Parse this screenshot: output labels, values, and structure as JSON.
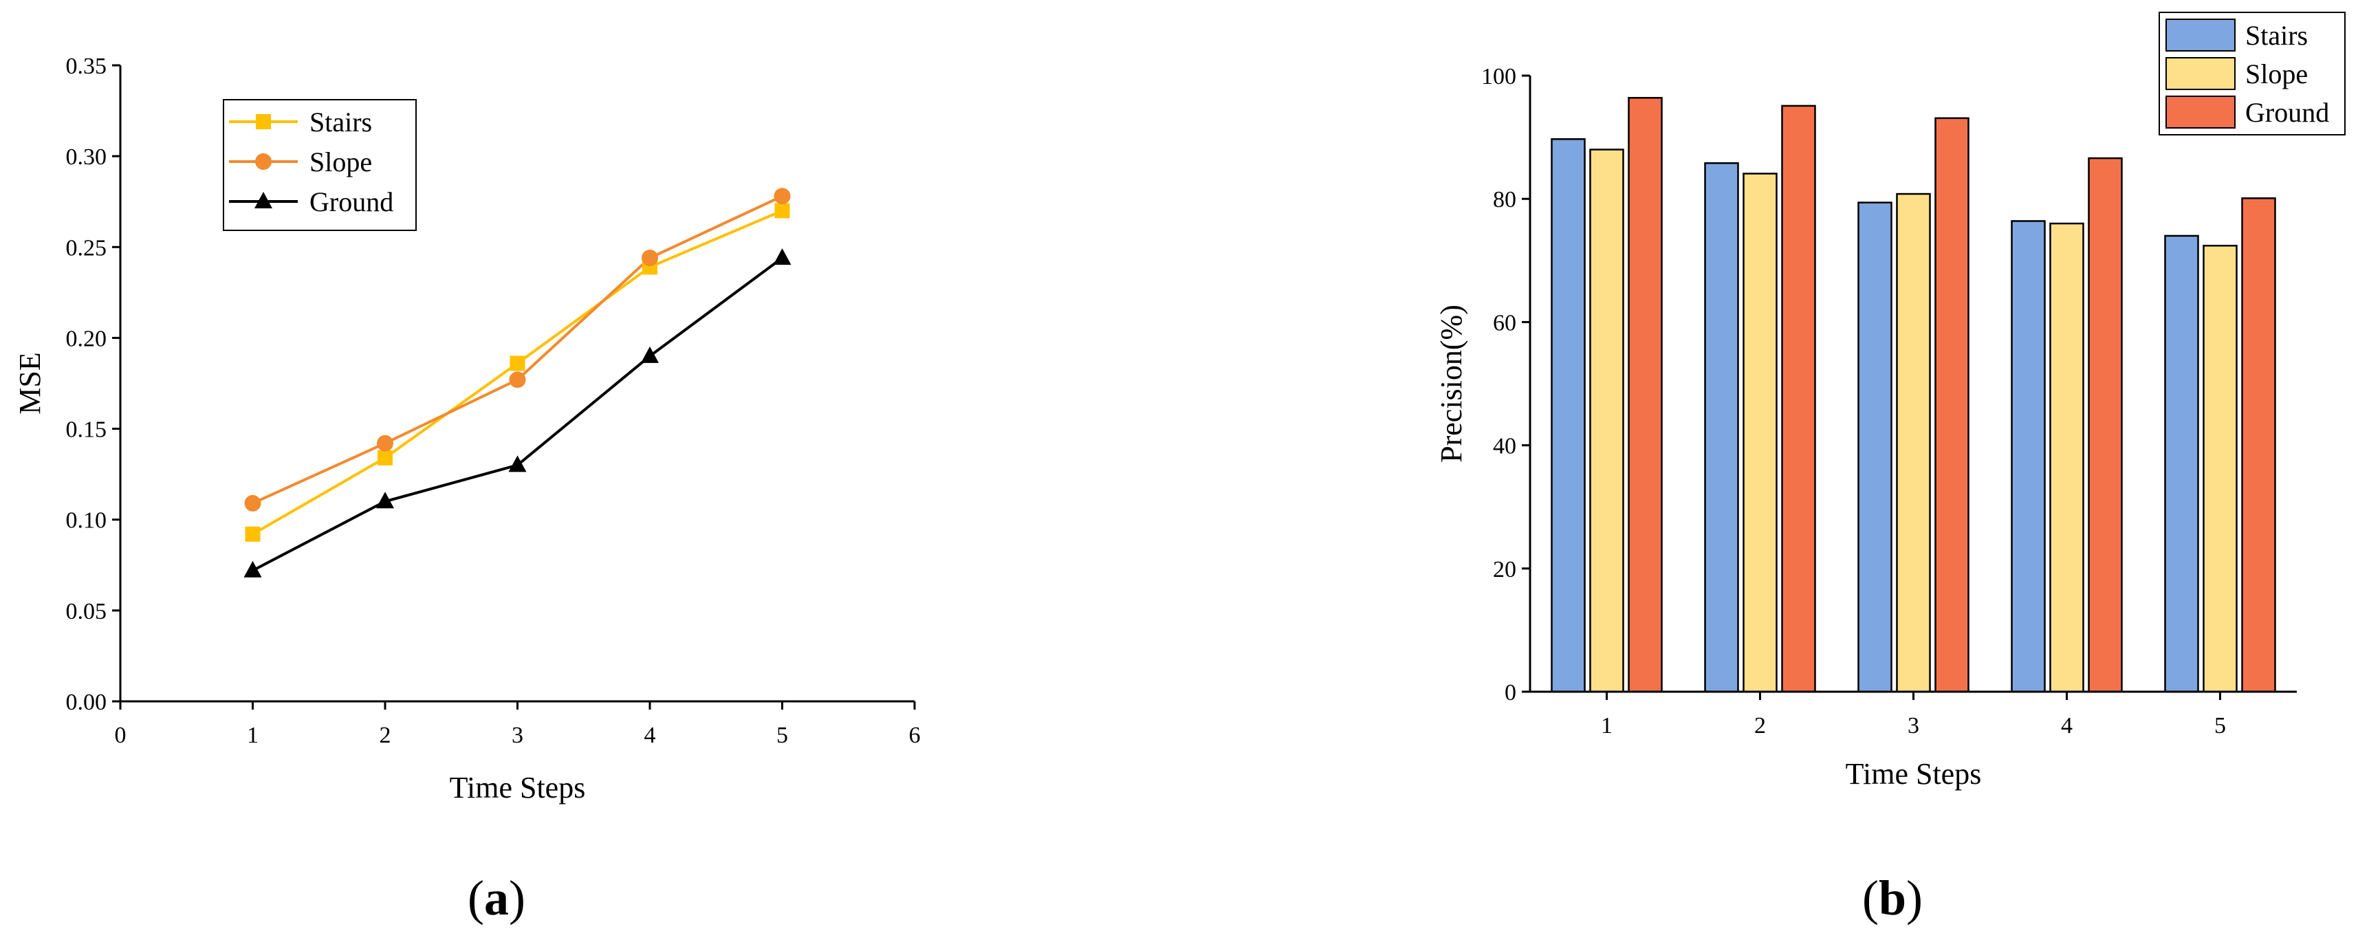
{
  "panels": [
    {
      "label_open": "(",
      "label_letter": "a",
      "label_close": ")"
    },
    {
      "label_open": "(",
      "label_letter": "b",
      "label_close": ")"
    }
  ],
  "chart_data": [
    {
      "type": "line",
      "xlabel": "Time Steps",
      "ylabel": "MSE",
      "xlim": [
        0,
        6
      ],
      "ylim": [
        0,
        0.35
      ],
      "x_ticks": [
        "0",
        "1",
        "2",
        "3",
        "4",
        "5",
        "6"
      ],
      "y_ticks": [
        "0.00",
        "0.05",
        "0.10",
        "0.15",
        "0.20",
        "0.25",
        "0.30",
        "0.35"
      ],
      "x": [
        1,
        2,
        3,
        4,
        5
      ],
      "legend_position": "top-left",
      "grid": false,
      "series": [
        {
          "name": "Stairs",
          "values": [
            0.092,
            0.134,
            0.186,
            0.239,
            0.27
          ],
          "color": "#FFC000",
          "marker": "square"
        },
        {
          "name": "Slope",
          "values": [
            0.109,
            0.142,
            0.177,
            0.244,
            0.278
          ],
          "color": "#F28A2E",
          "marker": "circle"
        },
        {
          "name": "Ground",
          "values": [
            0.072,
            0.11,
            0.13,
            0.19,
            0.244
          ],
          "color": "#000000",
          "marker": "triangle"
        }
      ]
    },
    {
      "type": "bar",
      "xlabel": "Time Steps",
      "ylabel": "Precision(%)",
      "ylim": [
        0,
        100
      ],
      "categories": [
        "1",
        "2",
        "3",
        "4",
        "5"
      ],
      "y_ticks": [
        "0",
        "20",
        "40",
        "60",
        "80",
        "100"
      ],
      "legend_position": "top-right",
      "grid": false,
      "series": [
        {
          "name": "Stairs",
          "values": [
            89.7,
            85.8,
            79.4,
            76.4,
            74.0
          ],
          "color": "#7EA6E0"
        },
        {
          "name": "Slope",
          "values": [
            88.0,
            84.1,
            80.8,
            76.0,
            72.4
          ],
          "color": "#FFE08A"
        },
        {
          "name": "Ground",
          "values": [
            96.4,
            95.1,
            93.1,
            86.6,
            80.1
          ],
          "color": "#F4724A"
        }
      ]
    }
  ]
}
